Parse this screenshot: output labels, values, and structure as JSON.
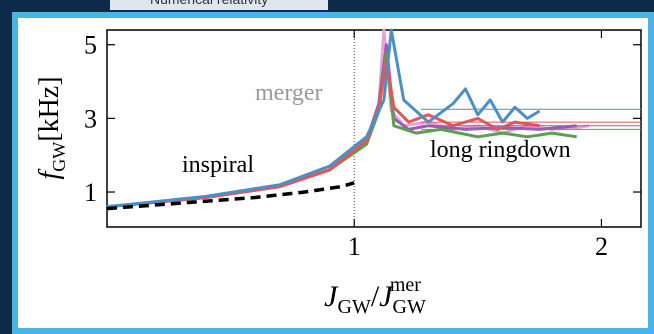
{
  "header": {
    "title": "Numerical relativity"
  },
  "chart_data": {
    "type": "line",
    "ylabel": [
      "f",
      "GW",
      "[kHz]"
    ],
    "xlabel": [
      "J",
      "GW",
      "/",
      "J",
      "GW",
      "mer"
    ],
    "annotations": [
      "merger",
      "inspiral",
      "long ringdown"
    ],
    "xlim": [
      0,
      2.16
    ],
    "ylim": [
      0.05,
      5.4
    ],
    "xticks": [
      1,
      2
    ],
    "yticks": [
      1,
      3,
      5
    ],
    "vline": 1,
    "series": [
      {
        "color": "#e8a0d8",
        "width": 3,
        "x": [
          0,
          0.4,
          0.7,
          0.9,
          1.05,
          1.1,
          1.12,
          1.15,
          1.2,
          1.3,
          1.4,
          1.5,
          1.6,
          1.7,
          1.8,
          1.9,
          1.95
        ],
        "y": [
          0.6,
          0.85,
          1.15,
          1.6,
          2.4,
          3.4,
          5.4,
          3.2,
          2.8,
          2.9,
          2.7,
          2.8,
          2.6,
          2.8,
          2.7,
          2.75,
          2.8
        ]
      },
      {
        "color": "#9b59b6",
        "width": 3,
        "x": [
          0,
          0.4,
          0.7,
          0.9,
          1.05,
          1.1,
          1.13,
          1.16,
          1.22,
          1.3,
          1.45,
          1.6,
          1.75,
          1.9
        ],
        "y": [
          0.6,
          0.85,
          1.15,
          1.6,
          2.4,
          3.4,
          5.0,
          3.0,
          2.7,
          2.8,
          2.7,
          2.75,
          2.7,
          2.8
        ]
      },
      {
        "color": "#59a14f",
        "width": 3,
        "x": [
          0,
          0.4,
          0.7,
          0.9,
          1.05,
          1.1,
          1.13,
          1.16,
          1.25,
          1.35,
          1.5,
          1.6,
          1.7,
          1.8,
          1.9
        ],
        "y": [
          0.6,
          0.85,
          1.15,
          1.6,
          2.3,
          3.2,
          4.8,
          2.8,
          2.6,
          2.7,
          2.5,
          2.6,
          2.5,
          2.6,
          2.5
        ]
      },
      {
        "color": "#e15759",
        "width": 3,
        "x": [
          0,
          0.4,
          0.7,
          0.9,
          1.05,
          1.1,
          1.13,
          1.16,
          1.22,
          1.3,
          1.4,
          1.5,
          1.58,
          1.65,
          1.75
        ],
        "y": [
          0.6,
          0.85,
          1.15,
          1.6,
          2.4,
          3.3,
          4.6,
          3.3,
          2.9,
          3.1,
          2.8,
          3.0,
          2.7,
          2.9,
          2.8
        ]
      },
      {
        "color": "#4c8fc7",
        "width": 3,
        "x": [
          0,
          0.4,
          0.7,
          0.9,
          1.05,
          1.12,
          1.15,
          1.2,
          1.3,
          1.4,
          1.45,
          1.5,
          1.55,
          1.6,
          1.65,
          1.7,
          1.75
        ],
        "y": [
          0.6,
          0.88,
          1.2,
          1.7,
          2.5,
          3.5,
          5.4,
          3.5,
          2.9,
          3.4,
          3.8,
          3.1,
          3.5,
          2.9,
          3.3,
          3.0,
          3.2
        ]
      },
      {
        "color": "#4c8fc7",
        "width": 1,
        "x": [
          1.27,
          2.16
        ],
        "y": [
          3.25,
          3.25
        ]
      },
      {
        "color": "#e15759",
        "width": 1,
        "x": [
          1.27,
          2.16
        ],
        "y": [
          2.9,
          2.9
        ]
      },
      {
        "color": "#9b59b6",
        "width": 1,
        "x": [
          1.27,
          2.16
        ],
        "y": [
          2.8,
          2.8
        ]
      },
      {
        "color": "#59a14f",
        "width": 1,
        "x": [
          1.27,
          2.16
        ],
        "y": [
          2.7,
          2.7
        ]
      },
      {
        "color": "#000000",
        "width": 3.5,
        "dash": true,
        "x": [
          0,
          0.2,
          0.4,
          0.6,
          0.8,
          0.95,
          1.0
        ],
        "y": [
          0.55,
          0.65,
          0.75,
          0.85,
          1.0,
          1.15,
          1.25
        ]
      }
    ]
  }
}
